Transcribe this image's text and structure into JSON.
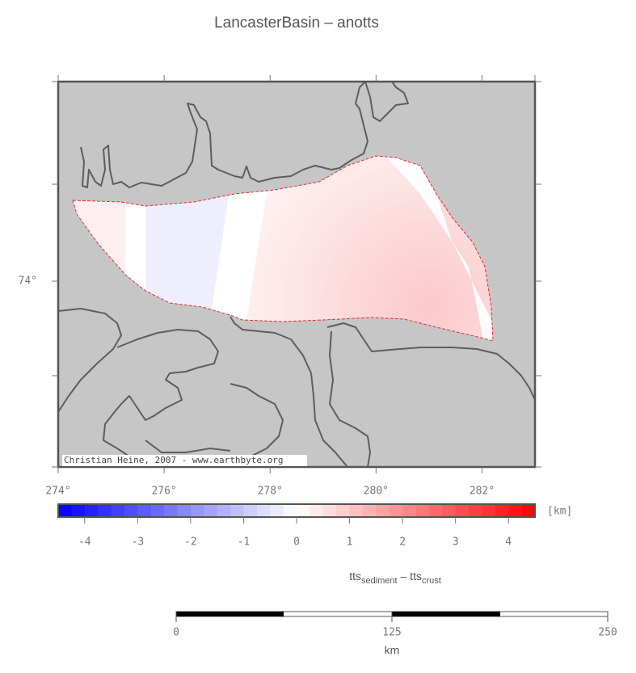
{
  "map": {
    "title": "LancasterBasin – anotts",
    "credit": "Christian Heine, 2007 - www.earthbyte.org",
    "xlim": [
      274,
      283
    ],
    "xticks": [
      {
        "value": 274,
        "label": "274°"
      },
      {
        "value": 276,
        "label": "276°"
      },
      {
        "value": 278,
        "label": "278°"
      },
      {
        "value": 280,
        "label": "280°"
      },
      {
        "value": 282,
        "label": "282°"
      }
    ],
    "yticks": [
      {
        "value": 74,
        "label": "74°"
      }
    ],
    "colorbar": {
      "clim": [
        -4.5,
        4.5
      ],
      "ticks": [
        -4,
        -3,
        -2,
        -1,
        0,
        1,
        2,
        3,
        4
      ],
      "colors": [
        "#0000ff",
        "#ffffff",
        "#ff0000"
      ],
      "unit": "[km]",
      "label_parts": [
        "tts",
        "sediment",
        " – tts",
        "crust"
      ]
    },
    "scalebar": {
      "lim": [
        0,
        250
      ],
      "ticks": [
        0,
        125,
        250
      ],
      "unit": "km"
    }
  }
}
